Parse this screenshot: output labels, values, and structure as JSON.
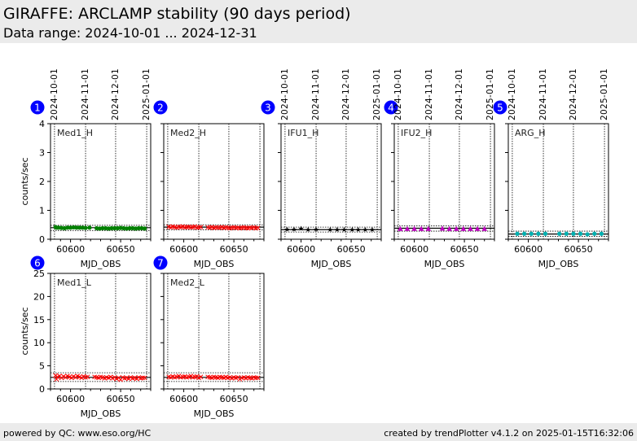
{
  "header": {
    "title": "GIRAFFE: ARCLAMP stability (90 days period)",
    "subtitle": "Data range: 2024-10-01 ... 2024-12-31"
  },
  "footer": {
    "left": "powered by QC: www.eso.org/HC",
    "right": "created by trendPlotter v4.1.2 on 2025-01-15T16:32:06"
  },
  "chart_data": [
    {
      "type": "scatter",
      "number": "1",
      "label": "Med1_H",
      "xlabel": "MJD_OBS",
      "ylabel": "counts/sec",
      "xlim": [
        60580,
        60680
      ],
      "ylim": [
        0,
        4
      ],
      "yticks": [
        0,
        1,
        2,
        3,
        4
      ],
      "xticks": [
        60600,
        60650
      ],
      "date_ticks": [
        {
          "label": "2024-10-01",
          "mjd": 60584
        },
        {
          "label": "2024-11-01",
          "mjd": 60615
        },
        {
          "label": "2024-12-01",
          "mjd": 60645
        },
        {
          "label": "2025-01-01",
          "mjd": 60676
        }
      ],
      "marker": "circle",
      "color": "#008000",
      "mean": 0.4,
      "limits": [
        0.3,
        0.48
      ],
      "x": [
        60585,
        60586,
        60588,
        60591,
        60594,
        60597,
        60600,
        60603,
        60606,
        60609,
        60612,
        60615,
        60619,
        60626,
        60629,
        60632,
        60635,
        60638,
        60641,
        60644,
        60647,
        60650,
        60653,
        60656,
        60659,
        60662,
        60665,
        60668,
        60671,
        60674
      ],
      "y": [
        0.42,
        0.4,
        0.4,
        0.39,
        0.38,
        0.4,
        0.4,
        0.41,
        0.4,
        0.4,
        0.4,
        0.39,
        0.4,
        0.38,
        0.37,
        0.38,
        0.38,
        0.37,
        0.38,
        0.38,
        0.38,
        0.39,
        0.38,
        0.37,
        0.38,
        0.38,
        0.37,
        0.38,
        0.38,
        0.37
      ]
    },
    {
      "type": "scatter",
      "number": "2",
      "label": "Med2_H",
      "xlabel": "MJD_OBS",
      "ylabel": "",
      "xlim": [
        60580,
        60680
      ],
      "ylim": [
        0,
        4
      ],
      "yticks": [
        0,
        1,
        2,
        3,
        4
      ],
      "xticks": [
        60600,
        60650
      ],
      "date_ticks": [
        {
          "label": "",
          "mjd": 60584
        },
        {
          "label": "",
          "mjd": 60615
        },
        {
          "label": "",
          "mjd": 60645
        },
        {
          "label": "",
          "mjd": 60676
        }
      ],
      "marker": "x",
      "color": "#ff0000",
      "mean": 0.42,
      "limits": [
        0.32,
        0.5
      ],
      "x": [
        60585,
        60587,
        60589,
        60591,
        60593,
        60595,
        60597,
        60599,
        60601,
        60603,
        60605,
        60607,
        60609,
        60611,
        60613,
        60615,
        60617,
        60624,
        60626,
        60628,
        60630,
        60632,
        60634,
        60636,
        60638,
        60640,
        60642,
        60644,
        60646,
        60648,
        60650,
        60652,
        60654,
        60656,
        60658,
        60660,
        60662,
        60664,
        60666,
        60668,
        60670,
        60672,
        60674
      ],
      "y": [
        0.43,
        0.41,
        0.44,
        0.42,
        0.4,
        0.43,
        0.42,
        0.44,
        0.41,
        0.42,
        0.43,
        0.41,
        0.42,
        0.44,
        0.4,
        0.41,
        0.42,
        0.41,
        0.4,
        0.42,
        0.39,
        0.41,
        0.4,
        0.4,
        0.42,
        0.39,
        0.41,
        0.4,
        0.38,
        0.4,
        0.41,
        0.39,
        0.4,
        0.38,
        0.4,
        0.41,
        0.39,
        0.38,
        0.4,
        0.39,
        0.41,
        0.38,
        0.39
      ]
    },
    {
      "type": "scatter",
      "number": "3",
      "label": "IFU1_H",
      "xlabel": "MJD_OBS",
      "ylabel": "",
      "xlim": [
        60580,
        60680
      ],
      "ylim": [
        0,
        4
      ],
      "yticks": [
        0,
        1,
        2,
        3,
        4
      ],
      "xticks": [
        60600,
        60650
      ],
      "date_ticks": [
        {
          "label": "2024-10-01",
          "mjd": 60584
        },
        {
          "label": "2024-11-01",
          "mjd": 60615
        },
        {
          "label": "2024-12-01",
          "mjd": 60645
        },
        {
          "label": "2025-01-01",
          "mjd": 60676
        }
      ],
      "marker": "star",
      "color": "#000000",
      "mean": 0.33,
      "limits": [
        0.25,
        0.42
      ],
      "x": [
        60586,
        60593,
        60600,
        60607,
        60615,
        60629,
        60636,
        60643,
        60651,
        60657,
        60664,
        60671
      ],
      "y": [
        0.35,
        0.35,
        0.38,
        0.34,
        0.35,
        0.34,
        0.34,
        0.34,
        0.34,
        0.34,
        0.34,
        0.34
      ]
    },
    {
      "type": "scatter",
      "number": "4",
      "label": "IFU2_H",
      "xlabel": "MJD_OBS",
      "ylabel": "",
      "xlim": [
        60580,
        60680
      ],
      "ylim": [
        0,
        4
      ],
      "yticks": [
        0,
        1,
        2,
        3,
        4
      ],
      "xticks": [
        60600,
        60650
      ],
      "date_ticks": [
        {
          "label": "2024-10-01",
          "mjd": 60584
        },
        {
          "label": "2024-11-01",
          "mjd": 60615
        },
        {
          "label": "2024-12-01",
          "mjd": 60645
        },
        {
          "label": "2025-01-01",
          "mjd": 60676
        }
      ],
      "marker": "triangle",
      "color": "#c000c0",
      "mean": 0.38,
      "limits": [
        0.28,
        0.46
      ],
      "x": [
        60586,
        60593,
        60600,
        60607,
        60614,
        60628,
        60635,
        60642,
        60649,
        60656,
        60663,
        60670
      ],
      "y": [
        0.36,
        0.36,
        0.36,
        0.36,
        0.36,
        0.37,
        0.36,
        0.36,
        0.36,
        0.36,
        0.36,
        0.36
      ]
    },
    {
      "type": "scatter",
      "number": "5",
      "label": "ARG_H",
      "xlabel": "MJD_OBS",
      "ylabel": "",
      "xlim": [
        60580,
        60680
      ],
      "ylim": [
        0,
        4
      ],
      "yticks": [
        0,
        1,
        2,
        3,
        4
      ],
      "xticks": [
        60600,
        60650
      ],
      "date_ticks": [
        {
          "label": "2024-10-01",
          "mjd": 60584
        },
        {
          "label": "2024-11-01",
          "mjd": 60615
        },
        {
          "label": "2024-12-01",
          "mjd": 60645
        },
        {
          "label": "2025-01-01",
          "mjd": 60676
        }
      ],
      "marker": "circle",
      "color": "#00b0b0",
      "mean": 0.18,
      "limits": [
        0.1,
        0.28
      ],
      "x": [
        60589,
        60596,
        60603,
        60610,
        60617,
        60631,
        60638,
        60645,
        60652,
        60659,
        60666,
        60673
      ],
      "y": [
        0.19,
        0.19,
        0.19,
        0.19,
        0.19,
        0.19,
        0.19,
        0.19,
        0.19,
        0.17,
        0.19,
        0.19
      ]
    },
    {
      "type": "scatter",
      "number": "6",
      "label": "Med1_L",
      "xlabel": "MJD_OBS",
      "ylabel": "counts/sec",
      "xlim": [
        60580,
        60680
      ],
      "ylim": [
        0,
        25
      ],
      "yticks": [
        0,
        5,
        10,
        15,
        20,
        25
      ],
      "xticks": [
        60600,
        60650
      ],
      "date_ticks": [
        {
          "label": "",
          "mjd": 60584
        },
        {
          "label": "",
          "mjd": 60615
        },
        {
          "label": "",
          "mjd": 60645
        },
        {
          "label": "",
          "mjd": 60676
        }
      ],
      "marker": "x",
      "color": "#ff0000",
      "mean": 2.5,
      "limits": [
        1.6,
        3.5
      ],
      "x": [
        60585,
        60586,
        60587,
        60589,
        60591,
        60593,
        60595,
        60597,
        60599,
        60601,
        60603,
        60605,
        60607,
        60609,
        60611,
        60613,
        60615,
        60617,
        60624,
        60626,
        60628,
        60630,
        60632,
        60634,
        60636,
        60638,
        60640,
        60642,
        60644,
        60646,
        60648,
        60650,
        60652,
        60654,
        60656,
        60658,
        60660,
        60662,
        60664,
        60666,
        60668,
        60670,
        60672,
        60674
      ],
      "y": [
        2.9,
        2.1,
        2.6,
        2.8,
        2.4,
        2.7,
        2.5,
        2.8,
        2.6,
        2.4,
        2.7,
        2.5,
        2.8,
        2.6,
        2.4,
        2.7,
        2.5,
        2.6,
        2.6,
        2.5,
        2.4,
        2.6,
        2.5,
        2.3,
        2.5,
        2.4,
        2.6,
        2.3,
        2.5,
        2.2,
        2.4,
        2.0,
        2.5,
        2.3,
        2.4,
        2.2,
        2.5,
        2.3,
        2.4,
        2.2,
        2.5,
        2.3,
        2.4,
        2.4
      ]
    },
    {
      "type": "scatter",
      "number": "7",
      "label": "Med2_L",
      "xlabel": "MJD_OBS",
      "ylabel": "",
      "xlim": [
        60580,
        60680
      ],
      "ylim": [
        0,
        25
      ],
      "yticks": [
        0,
        5,
        10,
        15,
        20,
        25
      ],
      "xticks": [
        60600,
        60650
      ],
      "date_ticks": [
        {
          "label": "",
          "mjd": 60584
        },
        {
          "label": "",
          "mjd": 60615
        },
        {
          "label": "",
          "mjd": 60645
        },
        {
          "label": "",
          "mjd": 60676
        }
      ],
      "marker": "x",
      "color": "#ff0000",
      "mean": 2.5,
      "limits": [
        1.6,
        3.5
      ],
      "x": [
        60585,
        60587,
        60589,
        60591,
        60593,
        60595,
        60597,
        60599,
        60601,
        60603,
        60605,
        60607,
        60609,
        60611,
        60613,
        60615,
        60617,
        60624,
        60626,
        60628,
        60630,
        60632,
        60634,
        60636,
        60638,
        60640,
        60642,
        60644,
        60646,
        60648,
        60650,
        60652,
        60654,
        60656,
        60658,
        60660,
        60662,
        60664,
        60666,
        60668,
        60670,
        60672,
        60674
      ],
      "y": [
        2.6,
        2.5,
        2.7,
        2.5,
        2.6,
        2.8,
        2.5,
        2.6,
        2.7,
        2.5,
        2.6,
        2.8,
        2.5,
        2.6,
        2.7,
        2.4,
        2.6,
        2.6,
        2.5,
        2.4,
        2.6,
        2.5,
        2.4,
        2.6,
        2.5,
        2.4,
        2.6,
        2.4,
        2.5,
        2.3,
        2.5,
        2.4,
        2.5,
        2.1,
        2.4,
        2.5,
        2.3,
        2.5,
        2.4,
        2.3,
        2.5,
        2.4,
        2.4
      ]
    }
  ]
}
